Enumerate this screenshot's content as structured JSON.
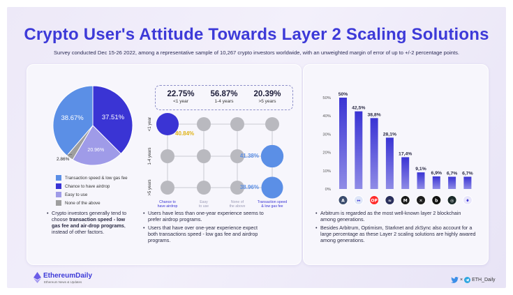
{
  "title": "Crypto User's Attitude Towards Layer 2 Scaling Solutions",
  "subtitle": "Survey conducted Dec 15-26 2022, among a representative sample of 10,267 crypto investors worldwide, with an unweighted margin of error of up to +/-2 percentage points.",
  "colors": {
    "accent": "#3d3ad8",
    "light_blue": "#5b8fe6",
    "lavender": "#9f9be8",
    "gray": "#9e9e9e",
    "bubble_gray": "#b9b9bf"
  },
  "pie": {
    "slices": [
      {
        "label": "Transaction speed & low gas fee",
        "value": 38.67,
        "text": "38.67%",
        "color": "#5b8fe6"
      },
      {
        "label": "Chance to have airdrop",
        "value": 37.51,
        "text": "37.51%",
        "color": "#3a34d4"
      },
      {
        "label": "Easy to use",
        "value": 20.96,
        "text": "20.96%",
        "color": "#9f9be8"
      },
      {
        "label": "None of the above",
        "value": 2.86,
        "text": "2.86%",
        "color": "#9e9e9e"
      }
    ]
  },
  "left_note": {
    "intro": "Crypto investors generally tend to choose ",
    "bold": "transaction speed - low gas fee and air-drop programs",
    "outro": ", instead of other factors."
  },
  "stats": [
    {
      "value": "22.75%",
      "label": "<1 year"
    },
    {
      "value": "56.87%",
      "label": "1-4 years"
    },
    {
      "value": "20.39%",
      "label": ">5 years"
    }
  ],
  "matrix": {
    "rows": [
      "<1 year",
      "1-4 years",
      ">5 years"
    ],
    "cols": [
      "Chance to have airdrop",
      "Easy to use",
      "None of the above",
      "Transaction speed & low gas fee"
    ],
    "highlights": [
      {
        "row": 0,
        "col": 0,
        "value": 40.84,
        "text": "40.84%",
        "color": "#3a34d4",
        "text_color": "#e0b318"
      },
      {
        "row": 1,
        "col": 3,
        "value": 41.38,
        "text": "41.38%",
        "color": "#5b8fe6",
        "text_color": "#5b8fe6"
      },
      {
        "row": 2,
        "col": 3,
        "value": 38.96,
        "text": "38.96%",
        "color": "#5b8fe6",
        "text_color": "#5b8fe6"
      }
    ]
  },
  "middle_notes": [
    "Users have less than one-year experience seems to prefer airdrop programs.",
    "Users that have over one-year experience expect both transactions speed - low gas fee and airdrop programs."
  ],
  "chart_data": {
    "type": "bar",
    "title": "",
    "categories": [
      "Arbitrum",
      "?",
      "OP",
      "Starknet",
      "zkSync",
      "Polygon",
      "Metis",
      "Loopring",
      "Boba"
    ],
    "values": [
      50,
      42.5,
      38.8,
      28.1,
      17.4,
      9.1,
      6.9,
      6.7,
      6.7
    ],
    "value_labels": [
      "50%",
      "42,5%",
      "38,8%",
      "28,1%",
      "17,4%",
      "9,1%",
      "6,9%",
      "6,7%",
      "6,7%"
    ],
    "yticks": [
      "0%",
      "10%",
      "20%",
      "30%",
      "40%",
      "50%"
    ],
    "ylim": [
      0,
      50
    ],
    "xlabel": "",
    "ylabel": "",
    "grid": false,
    "icon_colors": [
      "#3c4d6e",
      "#dfe6f8",
      "#ff2b2b",
      "#2a2f5c",
      "#1a1a1a",
      "#1e1e1e",
      "#121212",
      "#1b2a2a",
      "#e8e6fb"
    ],
    "icon_glyphs": [
      "A",
      "↔",
      "OP",
      "≈",
      "M",
      "✕",
      "b",
      "◎",
      "♦"
    ]
  },
  "right_notes": [
    "Arbitrum is regarded as the most well-known layer 2 blockchain among generations.",
    "Besides Arbitrum, Optimism, Starknet and zkSync also account for a large percentage as these Layer 2 scaling solutions are highly awared among generations."
  ],
  "brand": {
    "name": "EthereumDaily",
    "tagline": "Ethereum News & Updates"
  },
  "social": {
    "handle": "ETH_Daily",
    "separator": "×"
  }
}
